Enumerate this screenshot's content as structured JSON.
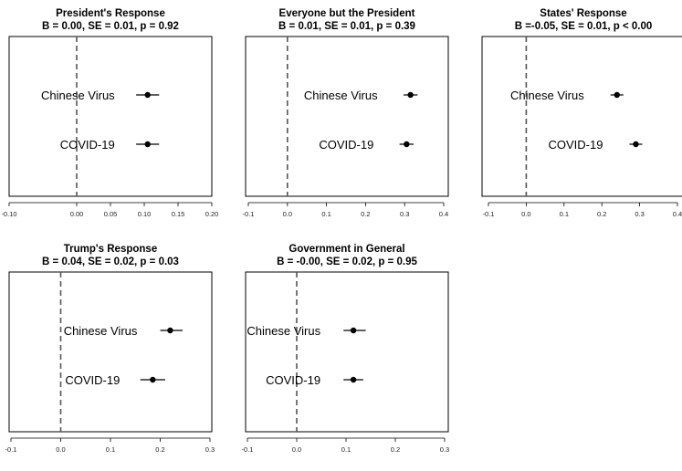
{
  "chart_data": [
    {
      "type": "scatter",
      "title": "President's Response",
      "subtitle": "B = 0.00, SE = 0.01, p = 0.92",
      "xlim": [
        -0.1,
        0.2
      ],
      "ticks": [
        -0.1,
        0.0,
        0.05,
        0.1,
        0.15,
        0.2
      ],
      "tick_labels": [
        "-0.10",
        "0.00",
        "0.05",
        "0.10",
        "0.15",
        "0.20"
      ],
      "reference_line": 0,
      "points": [
        {
          "label": "Chinese Virus",
          "estimate": 0.105,
          "lo": 0.088,
          "hi": 0.122
        },
        {
          "label": "COVID-19",
          "estimate": 0.105,
          "lo": 0.088,
          "hi": 0.122
        }
      ]
    },
    {
      "type": "scatter",
      "title": "Everyone but the President",
      "subtitle": "B = 0.01, SE = 0.01, p = 0.39",
      "xlim": [
        -0.1,
        0.4
      ],
      "ticks": [
        -0.1,
        0.0,
        0.1,
        0.2,
        0.3,
        0.4
      ],
      "tick_labels": [
        "-0.1",
        "0.0",
        "0.1",
        "0.2",
        "0.3",
        "0.4"
      ],
      "reference_line": 0,
      "points": [
        {
          "label": "Chinese Virus",
          "estimate": 0.315,
          "lo": 0.297,
          "hi": 0.333
        },
        {
          "label": "COVID-19",
          "estimate": 0.305,
          "lo": 0.287,
          "hi": 0.323
        }
      ]
    },
    {
      "type": "scatter",
      "title": "States' Response",
      "subtitle": "B =-0.05, SE = 0.01, p < 0.00",
      "xlim": [
        -0.1,
        0.4
      ],
      "ticks": [
        -0.1,
        0.0,
        0.1,
        0.2,
        0.3,
        0.4
      ],
      "tick_labels": [
        "-0.1",
        "0.0",
        "0.1",
        "0.2",
        "0.3",
        "0.4"
      ],
      "reference_line": 0,
      "points": [
        {
          "label": "Chinese Virus",
          "estimate": 0.24,
          "lo": 0.223,
          "hi": 0.257
        },
        {
          "label": "COVID-19",
          "estimate": 0.29,
          "lo": 0.273,
          "hi": 0.307
        }
      ]
    },
    {
      "type": "scatter",
      "title": "Trump's Response",
      "subtitle": "B = 0.04, SE = 0.02, p = 0.03",
      "xlim": [
        -0.1,
        0.3
      ],
      "ticks": [
        -0.1,
        0.0,
        0.1,
        0.2,
        0.3
      ],
      "tick_labels": [
        "-0.1",
        "0.0",
        "0.1",
        "0.2",
        "0.3"
      ],
      "reference_line": 0,
      "points": [
        {
          "label": "Chinese Virus",
          "estimate": 0.22,
          "lo": 0.2,
          "hi": 0.245
        },
        {
          "label": "COVID-19",
          "estimate": 0.185,
          "lo": 0.16,
          "hi": 0.21
        }
      ]
    },
    {
      "type": "scatter",
      "title": "Government in General",
      "subtitle": "B = -0.00, SE = 0.02, p = 0.95",
      "xlim": [
        -0.1,
        0.3
      ],
      "ticks": [
        -0.1,
        0.0,
        0.1,
        0.2,
        0.3
      ],
      "tick_labels": [
        "-0.1",
        "0.0",
        "0.1",
        "0.2",
        "0.3"
      ],
      "reference_line": 0,
      "points": [
        {
          "label": "Chinese Virus",
          "estimate": 0.115,
          "lo": 0.095,
          "hi": 0.14
        },
        {
          "label": "COVID-19",
          "estimate": 0.115,
          "lo": 0.095,
          "hi": 0.135
        }
      ]
    }
  ]
}
